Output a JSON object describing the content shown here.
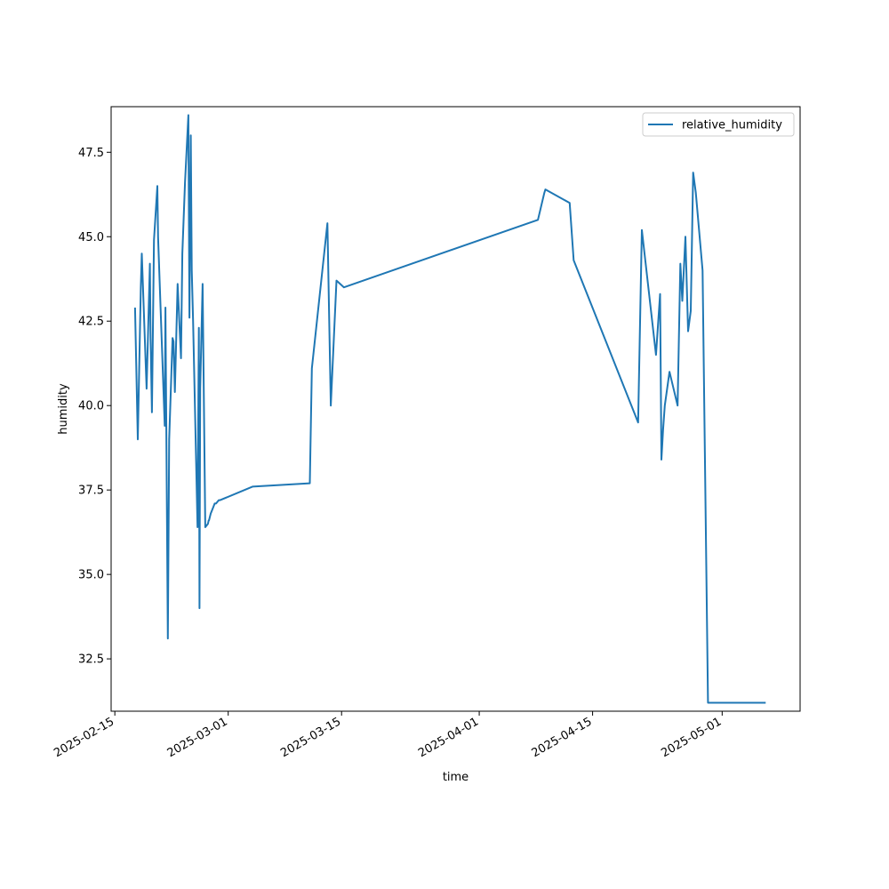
{
  "chart_data": {
    "type": "line",
    "title": "",
    "xlabel": "time",
    "ylabel": "humidity",
    "x_is_date": true,
    "xlim": [
      "2025-02-14T13:00",
      "2025-05-10T15:00"
    ],
    "ylim": [
      30.95,
      48.85
    ],
    "x_ticks": [
      "2025-02-15",
      "2025-03-01",
      "2025-03-15",
      "2025-04-01",
      "2025-04-15",
      "2025-05-01"
    ],
    "y_ticks": [
      32.5,
      35.0,
      37.5,
      40.0,
      42.5,
      45.0,
      47.5
    ],
    "y_tick_labels": [
      "32.5",
      "35.0",
      "37.5",
      "40.0",
      "42.5",
      "45.0",
      "47.5"
    ],
    "grid": false,
    "legend": {
      "placement": "upper right",
      "entries": [
        "relative_humidity"
      ]
    },
    "series": [
      {
        "name": "relative_humidity",
        "color": "#1f77b4",
        "x": [
          "2025-02-17T12:00",
          "2025-02-17T20:00",
          "2025-02-18T05:00",
          "2025-02-18T08:00",
          "2025-02-18T10:00",
          "2025-02-18T22:00",
          "2025-02-19T08:00",
          "2025-02-19T10:00",
          "2025-02-19T14:00",
          "2025-02-19T20:00",
          "2025-02-20T06:00",
          "2025-02-20T08:00",
          "2025-02-21T04:00",
          "2025-02-21T06:00",
          "2025-02-21T13:00",
          "2025-02-21T17:00",
          "2025-02-22T03:00",
          "2025-02-22T06:00",
          "2025-02-22T10:00",
          "2025-02-22T18:00",
          "2025-02-23T04:00",
          "2025-02-23T08:00",
          "2025-02-23T16:00",
          "2025-02-24T02:00",
          "2025-02-24T05:00",
          "2025-02-24T09:00",
          "2025-02-24T12:00",
          "2025-02-24T16:00",
          "2025-02-25T05:00",
          "2025-02-25T09:00",
          "2025-02-25T11:00",
          "2025-02-25T13:00",
          "2025-02-25T20:00",
          "2025-02-26T04:00",
          "2025-02-26T12:00",
          "2025-02-26T14:00",
          "2025-02-26T15:00",
          "2025-02-26T20:00",
          "2025-02-27T00:00",
          "2025-02-27T04:00",
          "2025-02-27T08:00",
          "2025-02-27T12:00",
          "2025-02-27T20:00",
          "2025-02-28T00:00",
          "2025-03-04T00:00",
          "2025-03-11T02:00",
          "2025-03-11T08:00",
          "2025-03-13T06:00",
          "2025-03-13T16:00",
          "2025-03-14T09:00",
          "2025-03-15T07:00",
          "2025-04-08T06:00",
          "2025-04-09T01:00",
          "2025-04-09T04:00",
          "2025-04-12T04:00",
          "2025-04-12T16:00",
          "2025-04-20T15:00",
          "2025-04-21T02:00",
          "2025-04-22T20:00",
          "2025-04-23T08:00",
          "2025-04-23T12:00",
          "2025-04-23T17:00",
          "2025-04-23T22:00",
          "2025-04-24T12:00",
          "2025-04-25T12:00",
          "2025-04-25T20:00",
          "2025-04-26T02:00",
          "2025-04-26T11:00",
          "2025-04-26T19:00",
          "2025-04-27T03:00",
          "2025-04-27T10:00",
          "2025-04-27T18:00",
          "2025-04-28T14:00",
          "2025-04-29T06:00",
          "2025-04-30T00:00",
          "2025-05-04T03:00",
          "2025-05-04T15:00",
          "2025-05-05T13:00",
          "2025-05-06T08:00",
          "2025-05-06T09:00"
        ],
        "y": [
          42.9,
          39.0,
          43.5,
          44.5,
          43.9,
          40.5,
          44.2,
          42.0,
          39.8,
          44.9,
          46.5,
          45.0,
          39.4,
          42.9,
          33.1,
          39.0,
          42.0,
          41.9,
          40.4,
          43.6,
          41.4,
          44.5,
          46.6,
          48.6,
          42.6,
          48.0,
          44.0,
          42.5,
          36.4,
          42.3,
          34.0,
          40.5,
          43.6,
          36.4,
          36.5,
          36.6,
          36.6,
          36.8,
          36.9,
          37.0,
          37.1,
          37.1,
          37.2,
          37.2,
          37.6,
          37.7,
          41.1,
          45.4,
          40.0,
          43.7,
          43.5,
          45.5,
          46.3,
          46.4,
          46.0,
          44.3,
          39.5,
          45.2,
          41.5,
          43.3,
          38.4,
          39.3,
          40.0,
          41.0,
          40.0,
          44.2,
          43.1,
          45.0,
          42.2,
          42.8,
          46.9,
          46.3,
          44.0,
          31.2,
          31.2,
          31.2,
          31.2,
          31.2,
          31.2,
          31.2
        ]
      }
    ]
  }
}
